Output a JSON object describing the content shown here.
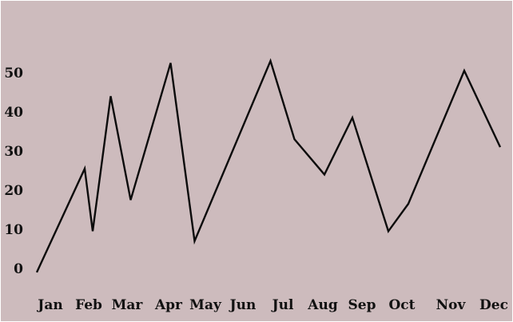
{
  "colors": {
    "background": "#cdbbbd",
    "line": "#0b0b0b",
    "text": "#111111"
  },
  "chart_data": {
    "type": "line",
    "title": "",
    "xlabel": "",
    "ylabel": "",
    "ylim": [
      0,
      50
    ],
    "yticks": [
      "0",
      "10",
      "20",
      "30",
      "40",
      "50"
    ],
    "month_labels": [
      "Jan",
      "Feb",
      "Mar",
      "Apr",
      "May",
      "Jun",
      "Jul",
      "Aug",
      "Sep",
      "Oct",
      "Nov",
      "Dec"
    ],
    "grid": false,
    "legend": "none",
    "series": [
      {
        "x": [
          0.0,
          1.2,
          1.4,
          1.85,
          2.35,
          3.35,
          3.95,
          5.85,
          6.45,
          7.2,
          7.9,
          8.8,
          9.3,
          10.7,
          11.6
        ],
        "y": [
          -1,
          25.5,
          9.5,
          44,
          17.5,
          52.5,
          7,
          53,
          33,
          24,
          38.5,
          9.5,
          16.5,
          50.5,
          31
        ]
      }
    ]
  }
}
